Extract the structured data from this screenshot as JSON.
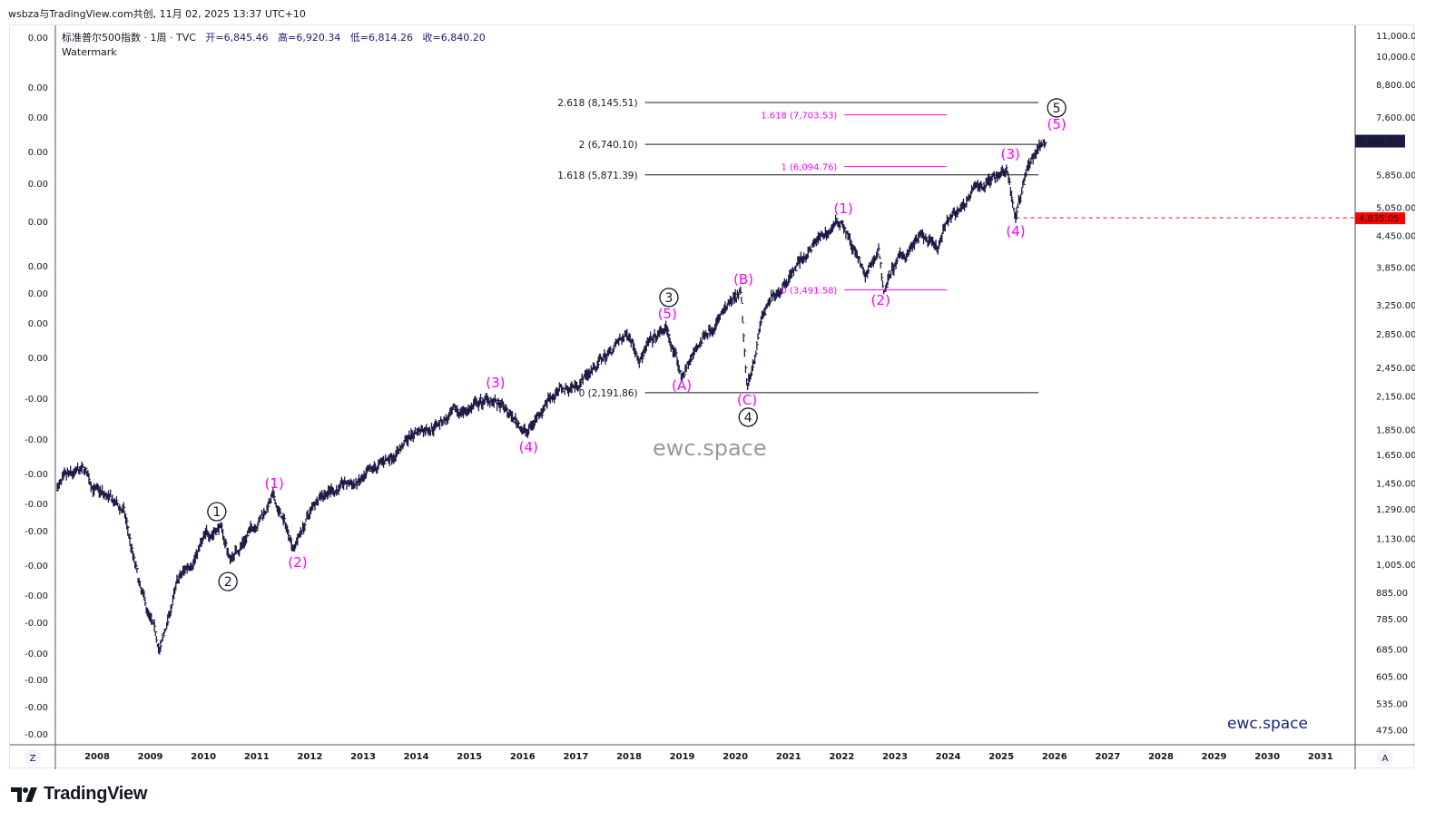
{
  "attribution": "wsbza与TradingView.com共创, 11月 02, 2025 13:37 UTC+10",
  "legend": {
    "symbol": "标准普尔500指数 · 1周 · TVC",
    "open": "开=6,845.46",
    "high": "高=6,920.34",
    "low": "低=6,814.26",
    "close": "收=6,840.20",
    "indicator": "Watermark"
  },
  "scale_buttons": {
    "left": "Z",
    "right": "A"
  },
  "brand": "TradingView",
  "watermarks": {
    "center": "ewc.space",
    "corner": "ewc.space"
  },
  "colors": {
    "bars": "#1c1a45",
    "wave_labels": "#ff00ff",
    "last_price_bg": "#1c1a45",
    "stop_line": "#ff0000",
    "fib_lines": "#131722"
  },
  "chart_data": {
    "type": "ohlc-bar",
    "symbol": "S&P 500 (TVC)",
    "interval": "1W",
    "y_scale": "log",
    "ylim": [
      450,
      11300
    ],
    "xlim": [
      2007.2,
      2032.0
    ],
    "grid": false,
    "x_ticks": [
      "2008",
      "2009",
      "2010",
      "2011",
      "2012",
      "2013",
      "2014",
      "2015",
      "2016",
      "2017",
      "2018",
      "2019",
      "2020",
      "2021",
      "2022",
      "2023",
      "2024",
      "2025",
      "2026",
      "2027",
      "2028",
      "2029",
      "2030",
      "2031"
    ],
    "y_ticks_right": [
      "11,000.00",
      "10,000.00",
      "8,800.00",
      "7,600.00",
      "5,850.00",
      "5,050.00",
      "4,450.00",
      "3,850.00",
      "3,250.00",
      "2,850.00",
      "2,450.00",
      "2,150.00",
      "1,850.00",
      "1,650.00",
      "1,450.00",
      "1,290.00",
      "1,130.00",
      "1,005.00",
      "885.00",
      "785.00",
      "685.00",
      "605.00",
      "535.00",
      "475.00"
    ],
    "y_ticks_left": [
      "0.00",
      "0.00",
      "0.00",
      "0.00",
      "0.00",
      "0.00",
      "0.00",
      "0.00",
      "0.00",
      "0.00",
      "-0.00",
      "-0.00",
      "-0.00",
      "-0.00",
      "-0.00",
      "-0.00",
      "-0.00",
      "-0.00",
      "-0.00",
      "-0.00",
      "-0.00",
      "-0.00"
    ],
    "price_path": [
      [
        2007.25,
        1440
      ],
      [
        2007.75,
        1530
      ],
      [
        2008.0,
        1400
      ],
      [
        2008.5,
        1280
      ],
      [
        2008.8,
        900
      ],
      [
        2009.18,
        680
      ],
      [
        2009.5,
        920
      ],
      [
        2010.0,
        1120
      ],
      [
        2010.3,
        1210
      ],
      [
        2010.5,
        1030
      ],
      [
        2011.3,
        1360
      ],
      [
        2011.7,
        1100
      ],
      [
        2012.2,
        1400
      ],
      [
        2012.8,
        1450
      ],
      [
        2013.0,
        1460
      ],
      [
        2014.0,
        1840
      ],
      [
        2015.4,
        2130
      ],
      [
        2016.1,
        1830
      ],
      [
        2016.5,
        2170
      ],
      [
        2017.0,
        2270
      ],
      [
        2018.0,
        2870
      ],
      [
        2018.2,
        2600
      ],
      [
        2018.7,
        2930
      ],
      [
        2018.98,
        2350
      ],
      [
        2019.5,
        2950
      ],
      [
        2020.1,
        3380
      ],
      [
        2020.22,
        2190
      ],
      [
        2020.5,
        3100
      ],
      [
        2021.0,
        3750
      ],
      [
        2021.5,
        4300
      ],
      [
        2022.0,
        4800
      ],
      [
        2022.45,
        3650
      ],
      [
        2022.7,
        4200
      ],
      [
        2022.78,
        3490
      ],
      [
        2023.0,
        3900
      ],
      [
        2023.5,
        4450
      ],
      [
        2023.8,
        4120
      ],
      [
        2024.0,
        4780
      ],
      [
        2024.5,
        5450
      ],
      [
        2025.1,
        6140
      ],
      [
        2025.27,
        4835
      ],
      [
        2025.5,
        6200
      ],
      [
        2025.84,
        6840
      ]
    ],
    "last_price": "6,840.20",
    "stop_level": {
      "price": 4835.05,
      "label": "4,835.05"
    },
    "fib_levels": [
      {
        "label": "2.618 (8,145.51)",
        "price": 8145.51,
        "from": 2018.3,
        "to": 2025.7,
        "color": "#131722"
      },
      {
        "label": "2 (6,740.10)",
        "price": 6740.1,
        "from": 2018.3,
        "to": 2025.7,
        "color": "#131722"
      },
      {
        "label": "1.618 (5,871.39)",
        "price": 5871.39,
        "from": 2018.3,
        "to": 2025.7,
        "color": "#131722"
      },
      {
        "label": "0 (2,191.86)",
        "price": 2191.86,
        "from": 2018.3,
        "to": 2025.7,
        "color": "#131722"
      },
      {
        "label": "1.618 (7,703.53)",
        "price": 7703.53,
        "from": 2022.05,
        "to": 2023.97,
        "color": "#ff00ff"
      },
      {
        "label": "1 (6,094.76)",
        "price": 6094.76,
        "from": 2022.05,
        "to": 2023.97,
        "color": "#ff00ff"
      },
      {
        "label": "0 (3,491.58)",
        "price": 3491.58,
        "from": 2022.05,
        "to": 2023.97,
        "color": "#ff00ff"
      }
    ],
    "wave_labels": [
      {
        "text": "1",
        "circled": true,
        "year": 2010.25,
        "price": 1280
      },
      {
        "text": "2",
        "circled": true,
        "year": 2010.46,
        "price": 933
      },
      {
        "text": "(1)",
        "circled": false,
        "year": 2011.33,
        "price": 1436
      },
      {
        "text": "(2)",
        "circled": false,
        "year": 2011.77,
        "price": 1005
      },
      {
        "text": "(3)",
        "circled": false,
        "year": 2015.49,
        "price": 2265
      },
      {
        "text": "(4)",
        "circled": false,
        "year": 2016.11,
        "price": 1692
      },
      {
        "text": "(5)",
        "circled": false,
        "year": 2018.72,
        "price": 3094
      },
      {
        "text": "3",
        "circled": true,
        "year": 2018.75,
        "price": 3372
      },
      {
        "text": "(A)",
        "circled": false,
        "year": 2018.99,
        "price": 2237
      },
      {
        "text": "(B)",
        "circled": false,
        "year": 2020.15,
        "price": 3613
      },
      {
        "text": "(C)",
        "circled": false,
        "year": 2020.22,
        "price": 2095
      },
      {
        "text": "4",
        "circled": true,
        "year": 2020.24,
        "price": 1962
      },
      {
        "text": "(1)",
        "circled": false,
        "year": 2022.03,
        "price": 4981
      },
      {
        "text": "(2)",
        "circled": false,
        "year": 2022.73,
        "price": 3289
      },
      {
        "text": "(3)",
        "circled": false,
        "year": 2025.17,
        "price": 6368
      },
      {
        "text": "(4)",
        "circled": false,
        "year": 2025.27,
        "price": 4493
      },
      {
        "text": "(5)",
        "circled": false,
        "year": 2026.04,
        "price": 7293
      },
      {
        "text": "5",
        "circled": true,
        "year": 2026.04,
        "price": 7950
      }
    ]
  }
}
